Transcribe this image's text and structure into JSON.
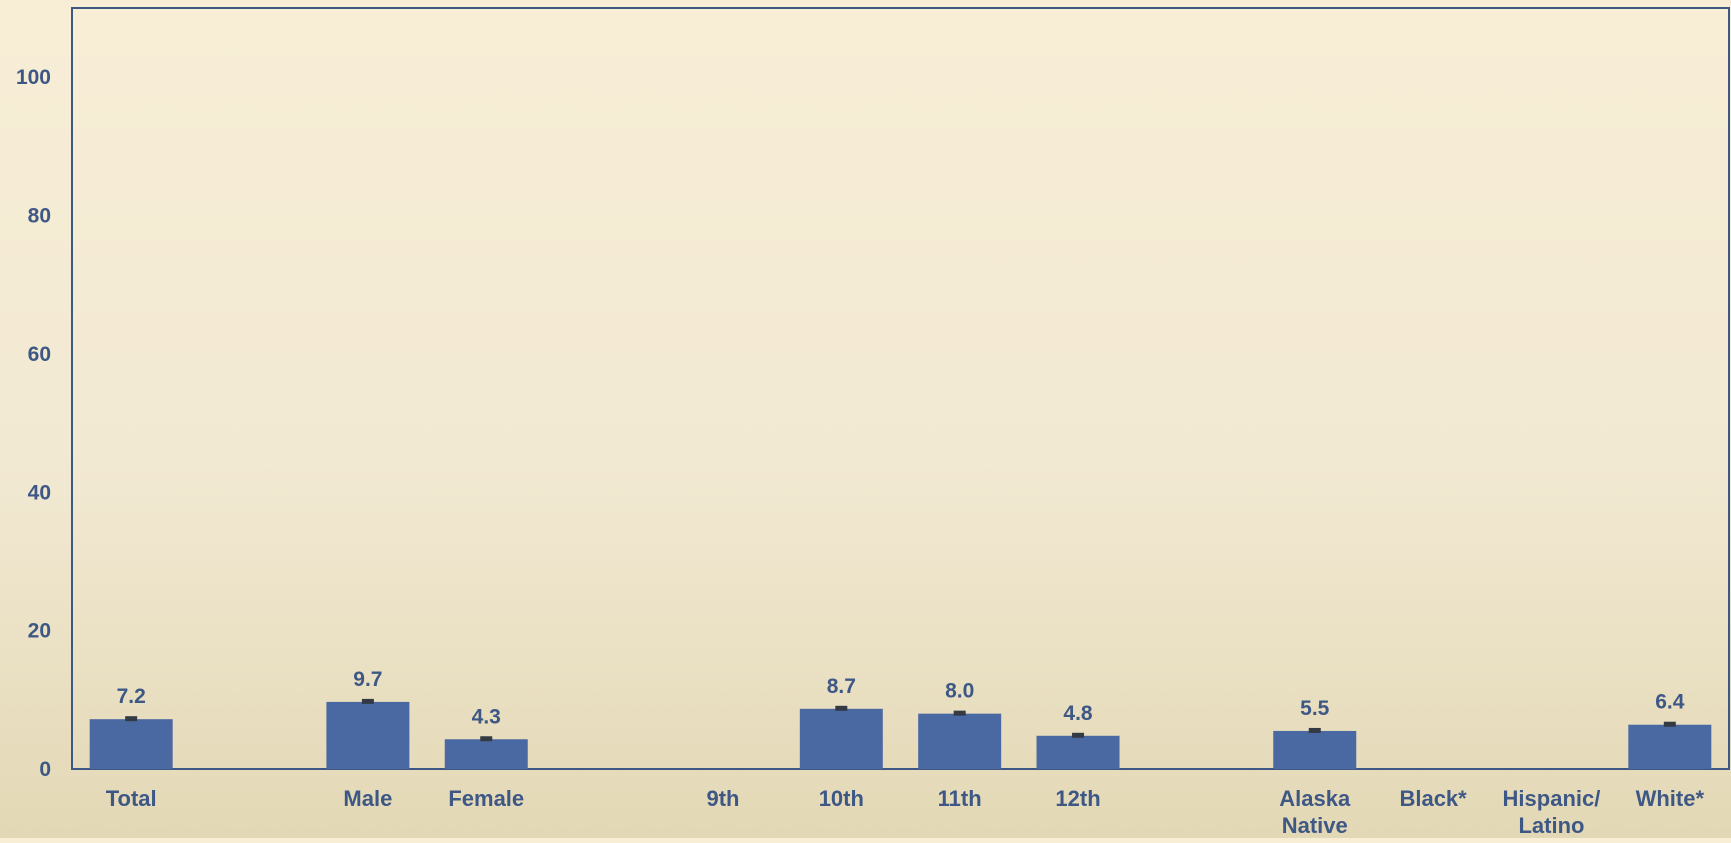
{
  "colors": {
    "bar": "#4a69a3",
    "text": "#3e5886",
    "axis": "#3e5886",
    "error_bar": "#333a44"
  },
  "chart_data": {
    "type": "bar",
    "title": "",
    "xlabel": "",
    "ylabel": "",
    "ylim": [
      0,
      110
    ],
    "yticks": [
      0,
      20,
      40,
      60,
      80,
      100
    ],
    "grid": false,
    "legend": "none",
    "categories": [
      {
        "slot": 0,
        "label": [
          "Total"
        ],
        "value": 7.2,
        "value_label": "7.2"
      },
      {
        "slot": 2,
        "label": [
          "Male"
        ],
        "value": 9.7,
        "value_label": "9.7"
      },
      {
        "slot": 3,
        "label": [
          "Female"
        ],
        "value": 4.3,
        "value_label": "4.3"
      },
      {
        "slot": 5,
        "label": [
          "9th"
        ],
        "value": null,
        "value_label": ""
      },
      {
        "slot": 6,
        "label": [
          "10th"
        ],
        "value": 8.7,
        "value_label": "8.7"
      },
      {
        "slot": 7,
        "label": [
          "11th"
        ],
        "value": 8.0,
        "value_label": "8.0"
      },
      {
        "slot": 8,
        "label": [
          "12th"
        ],
        "value": 4.8,
        "value_label": "4.8"
      },
      {
        "slot": 10,
        "label": [
          "Alaska",
          "Native"
        ],
        "value": 5.5,
        "value_label": "5.5"
      },
      {
        "slot": 11,
        "label": [
          "Black*"
        ],
        "value": null,
        "value_label": ""
      },
      {
        "slot": 12,
        "label": [
          "Hispanic/",
          "Latino"
        ],
        "value": null,
        "value_label": ""
      },
      {
        "slot": 13,
        "label": [
          "White*"
        ],
        "value": 6.4,
        "value_label": "6.4"
      }
    ]
  }
}
